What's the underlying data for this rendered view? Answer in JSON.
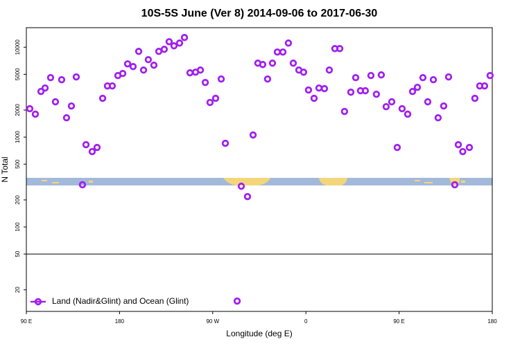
{
  "chart_data": {
    "type": "scatter",
    "title": "10S-5S June (Ver 8)   2014-09-06 to 2017-06-30",
    "x_label": "Longitude (deg E)",
    "y_label": "N Total",
    "log_y": true,
    "legend": "bottom-left",
    "hline": 50,
    "xlim": [
      90,
      540
    ],
    "xticks": [
      {
        "value": 90,
        "label": "90 E"
      },
      180,
      {
        "value": 270,
        "label": "90 W"
      },
      {
        "value": 360,
        "label": "0"
      },
      {
        "value": 450,
        "label": "90 E"
      },
      {
        "value": 540,
        "label": "180"
      }
    ],
    "ylim": [
      11.5,
      16500
    ],
    "yticks": [
      20,
      50,
      100,
      200,
      500,
      1000,
      2000,
      5000,
      10000
    ],
    "series": [
      {
        "name": "Land (Nadir&Glint) and Ocean (Glint)",
        "color": "#a020f0",
        "x": [
          93.3,
          98.7,
          104.1,
          108.1,
          113.4,
          118.1,
          124.1,
          128.8,
          133.5,
          138.2,
          144.2,
          147.6,
          153.6,
          158.3,
          163.7,
          168.3,
          173.0,
          178.4,
          183.1,
          187.8,
          193.1,
          198.5,
          203.2,
          207.8,
          213.2,
          217.9,
          223.2,
          227.9,
          232.6,
          238.0,
          242.7,
          248.0,
          253.4,
          258.1,
          262.8,
          267.4,
          272.8,
          278.2,
          282.2,
          293.6,
          297.6,
          303.6,
          309.0,
          313.6,
          318.3,
          323.0,
          327.7,
          332.4,
          337.8,
          343.1,
          347.8,
          353.2,
          357.8,
          362.5,
          367.9,
          372.6,
          377.9,
          382.6,
          388.0,
          392.7,
          397.3,
          403.4,
          408.1,
          412.7,
          417.4,
          422.8,
          428.1,
          432.8,
          437.5,
          442.9,
          448.2,
          452.9,
          458.3,
          463.0,
          467.7,
          473.0,
          477.7,
          483.1,
          487.7,
          493.1,
          497.8,
          503.8,
          507.2,
          511.5,
          517.9,
          523.2,
          527.9,
          532.6,
          537.9
        ],
        "values": [
          2070,
          1800,
          3220,
          3520,
          4590,
          2470,
          4350,
          1640,
          2220,
          4670,
          295,
          823,
          690,
          767,
          2700,
          3710,
          3710,
          4840,
          5100,
          6530,
          6090,
          8990,
          5570,
          7270,
          6310,
          8990,
          9480,
          11520,
          10360,
          11120,
          12820,
          5190,
          5280,
          5570,
          4050,
          2430,
          2700,
          4430,
          853,
          15,
          284,
          218,
          1055,
          6650,
          6420,
          4430,
          6650,
          8840,
          8840,
          11120,
          6650,
          5570,
          5280,
          3340,
          2700,
          3520,
          3460,
          5570,
          9650,
          9650,
          1930,
          3160,
          4590,
          3280,
          3280,
          4840,
          3000,
          4920,
          2180,
          2470,
          767,
          2070,
          1800,
          3220,
          3580,
          4590,
          2470,
          4350,
          1640,
          2220,
          4670,
          295,
          823,
          690,
          767,
          2700,
          3710,
          3710,
          4840
        ]
      }
    ]
  }
}
